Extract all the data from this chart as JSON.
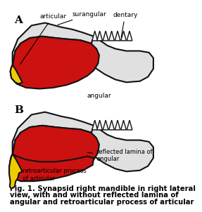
{
  "caption_line1": "Fig. 1. Synapsid right mandible in right lateral",
  "caption_line2": "view, with and without reflected lamina of",
  "caption_line3": "angular and retroarticular process of articular",
  "label_A": "A",
  "label_B": "B",
  "bg_color": "#ffffff",
  "red_fill": "#cc1111",
  "yellow_fill": "#eecc00",
  "white_fill": "#f8f8f8",
  "dotted_fill": "#e0e0e0",
  "outline_color": "#111111",
  "text_color": "#000000",
  "caption_fontsize": 7.2,
  "annotation_fontsize": 6.5
}
